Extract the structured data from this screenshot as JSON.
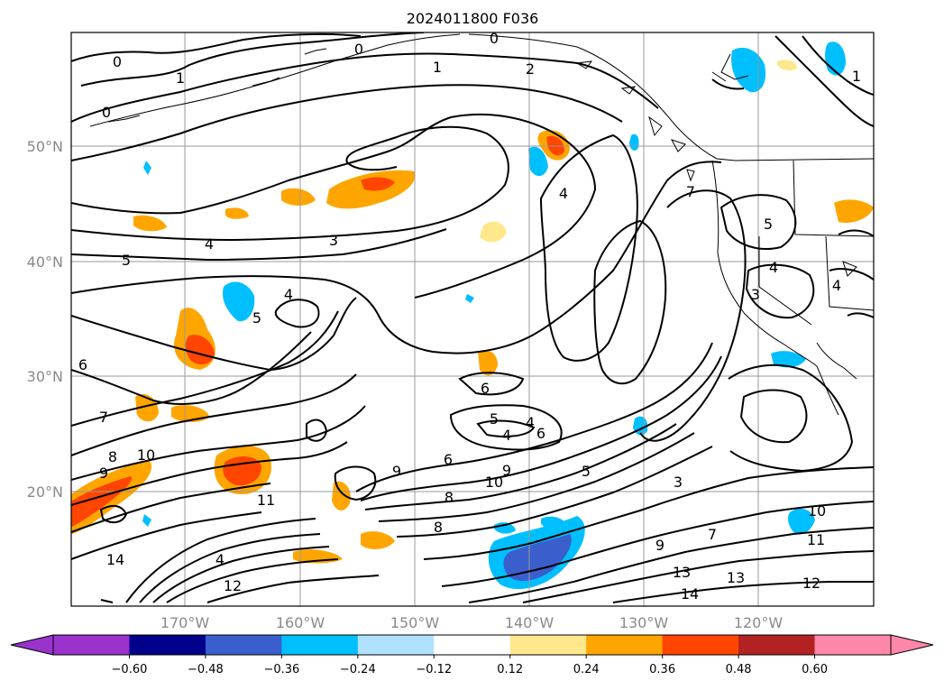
{
  "title": "2024011800 F036",
  "latitude_labels": [
    "50°N",
    "40°N",
    "30°N",
    "20°N"
  ],
  "longitude_labels": [
    "170°W",
    "160°W",
    "150°W",
    "140°W",
    "130°W",
    "120°W"
  ],
  "colorbar": {
    "tick_labels": [
      "−0.60",
      "−0.48",
      "−0.36",
      "−0.24",
      "−0.12",
      "0.12",
      "0.24",
      "0.36",
      "0.48",
      "0.60"
    ],
    "colors": [
      "#9933cc",
      "#00008b",
      "#3a5fcd",
      "#00bfff",
      "#b0e2ff",
      "#ffffff",
      "#ffe88c",
      "#ffa500",
      "#ff4500",
      "#b22222",
      "#ff88aa"
    ]
  },
  "contour_labels": [
    "0",
    "0",
    "0",
    "1",
    "1",
    "2",
    "0",
    "1",
    "4",
    "3",
    "5",
    "4",
    "5",
    "6",
    "7",
    "8",
    "9",
    "10",
    "11",
    "14",
    "4",
    "12",
    "4",
    "9",
    "6",
    "10",
    "9",
    "8",
    "5",
    "4",
    "6",
    "6",
    "5",
    "4",
    "3",
    "7",
    "13",
    "13",
    "14",
    "12",
    "10",
    "11",
    "5",
    "4",
    "3",
    "7",
    "8",
    "9",
    "4"
  ]
}
